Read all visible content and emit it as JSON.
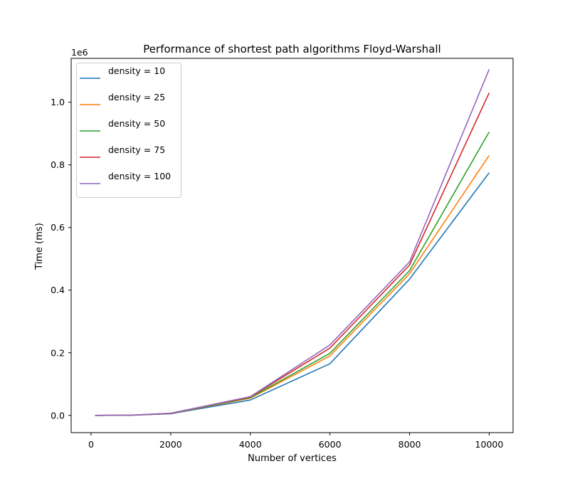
{
  "chart_data": {
    "type": "line",
    "title": "Performance of shortest path algorithms Floyd-Warshall",
    "xlabel": "Number of vertices",
    "ylabel": "Time (ms)",
    "y_offset_label": "1e6",
    "y_scale": 1000000,
    "xlim": [
      -500,
      10600
    ],
    "ylim": [
      -55000,
      1140000
    ],
    "xticks": [
      0,
      2000,
      4000,
      6000,
      8000,
      10000
    ],
    "yticks": [
      0.0,
      0.2,
      0.4,
      0.6,
      0.8,
      1.0
    ],
    "x": [
      100,
      1000,
      2000,
      4000,
      6000,
      8000,
      10000
    ],
    "series": [
      {
        "name": "density = 10",
        "color": "#1f77b4",
        "values": [
          0,
          500,
          5500,
          49000,
          165000,
          435000,
          775000
        ]
      },
      {
        "name": "density = 25",
        "color": "#ff7f0e",
        "values": [
          0,
          600,
          6000,
          55000,
          190000,
          452000,
          830000
        ]
      },
      {
        "name": "density = 50",
        "color": "#2ca02c",
        "values": [
          0,
          700,
          6200,
          57000,
          198000,
          462000,
          905000
        ]
      },
      {
        "name": "density = 75",
        "color": "#d62728",
        "values": [
          0,
          800,
          6600,
          59000,
          215000,
          480000,
          1030000
        ]
      },
      {
        "name": "density = 100",
        "color": "#9467bd",
        "values": [
          0,
          900,
          7000,
          60000,
          225000,
          490000,
          1105000
        ]
      }
    ],
    "legend_position": "top-left",
    "grid": false
  }
}
